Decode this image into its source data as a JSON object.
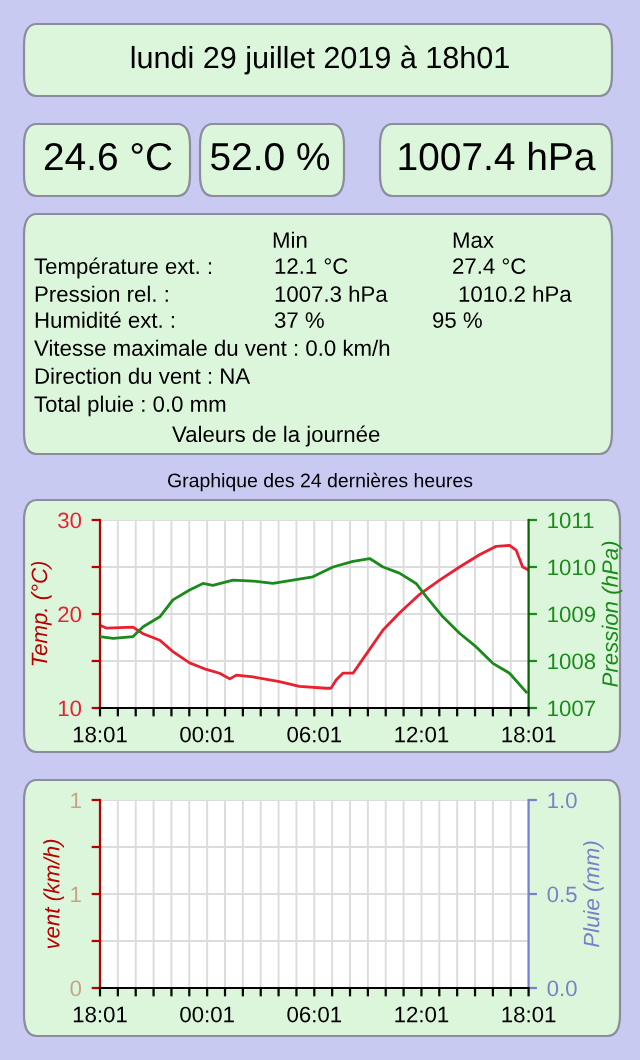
{
  "chart_data": [
    {
      "type": "other",
      "title": "lundi 29 juillet 2019 à 18h01",
      "annotations": [
        "24.6 °C",
        "52.0 %",
        "1007.4 hPa",
        "Min",
        "Max",
        "Température ext. :",
        "12.1 °C",
        "27.4 °C",
        "Pression rel. :",
        "1007.3 hPa",
        "1010.2 hPa",
        "Humidité ext. :",
        "37 %",
        "95 %",
        "Vitesse maximale du vent : 0.0 km/h",
        "Direction du vent : NA",
        "Total pluie : 0.0 mm",
        "Valeurs de la journée"
      ]
    },
    {
      "type": "line",
      "title": "Graphique des 24 dernières heures",
      "ylabel": "Temp. (°C)",
      "y2label": "Pression (hPa)",
      "grid": true,
      "xlim": [
        "2019-07-28T18:01",
        "2019-07-29T18:01"
      ],
      "xticks": [
        {
          "value": "2019-07-28T18:01",
          "label": "18:01"
        },
        {
          "value": "2019-07-28T19:01",
          "label": null
        },
        {
          "value": "2019-07-28T20:01",
          "label": null
        },
        {
          "value": "2019-07-28T21:01",
          "label": null
        },
        {
          "value": "2019-07-28T22:01",
          "label": null
        },
        {
          "value": "2019-07-28T23:01",
          "label": null
        },
        {
          "value": "2019-07-29T00:01",
          "label": "00:01"
        },
        {
          "value": "2019-07-29T01:01",
          "label": null
        },
        {
          "value": "2019-07-29T02:01",
          "label": null
        },
        {
          "value": "2019-07-29T03:01",
          "label": null
        },
        {
          "value": "2019-07-29T04:01",
          "label": null
        },
        {
          "value": "2019-07-29T05:01",
          "label": null
        },
        {
          "value": "2019-07-29T06:01",
          "label": "06:01"
        },
        {
          "value": "2019-07-29T07:01",
          "label": null
        },
        {
          "value": "2019-07-29T08:01",
          "label": null
        },
        {
          "value": "2019-07-29T09:01",
          "label": null
        },
        {
          "value": "2019-07-29T10:01",
          "label": null
        },
        {
          "value": "2019-07-29T11:01",
          "label": null
        },
        {
          "value": "2019-07-29T12:01",
          "label": "12:01"
        },
        {
          "value": "2019-07-29T13:01",
          "label": null
        },
        {
          "value": "2019-07-29T14:01",
          "label": null
        },
        {
          "value": "2019-07-29T15:01",
          "label": null
        },
        {
          "value": "2019-07-29T16:01",
          "label": null
        },
        {
          "value": "2019-07-29T17:01",
          "label": null
        },
        {
          "value": "2019-07-29T18:01",
          "label": "18:01"
        }
      ],
      "ylim": [
        10,
        30
      ],
      "yticks": [
        10,
        {
          "value": 15,
          "label": null
        },
        20,
        {
          "value": 25,
          "label": null
        },
        30
      ],
      "y2lim": [
        1007,
        1011
      ],
      "y2ticks": [
        1007,
        1008,
        1009,
        1010,
        1011
      ],
      "series": [
        {
          "color": "#e82030",
          "x": [
            "2019-07-28T18:01",
            "2019-07-28T18:22",
            "2019-07-28T19:52",
            "2019-07-28T20:26",
            "2019-07-28T21:22",
            "2019-07-28T22:06",
            "2019-07-28T23:02",
            "2019-07-28T23:58",
            "2019-07-29T00:43",
            "2019-07-29T01:17",
            "2019-07-29T01:39",
            "2019-07-29T02:35",
            "2019-07-29T04:04",
            "2019-07-29T05:11",
            "2019-07-29T06:41",
            "2019-07-29T06:57",
            "2019-07-29T07:15",
            "2019-07-29T07:37",
            "2019-07-29T08:11",
            "2019-07-29T08:44",
            "2019-07-29T09:52",
            "2019-07-29T10:47",
            "2019-07-29T11:55",
            "2019-07-29T13:02",
            "2019-07-29T14:09",
            "2019-07-29T15:16",
            "2019-07-29T16:12",
            "2019-07-29T16:57",
            "2019-07-29T17:19",
            "2019-07-29T17:41",
            "2019-07-29T18:00"
          ],
          "values": [
            18.8,
            18.5,
            18.6,
            17.9,
            17.2,
            16.0,
            14.8,
            14.1,
            13.7,
            13.1,
            13.5,
            13.3,
            12.8,
            12.3,
            12.1,
            12.1,
            13.0,
            13.7,
            13.7,
            15.2,
            18.3,
            20.1,
            22.1,
            23.6,
            25.0,
            26.3,
            27.2,
            27.3,
            26.8,
            25.0,
            24.7
          ]
        },
        {
          "color": "#1a8a1a",
          "axis": "y2",
          "x": [
            "2019-07-28T18:01",
            "2019-07-28T18:45",
            "2019-07-28T19:52",
            "2019-07-28T20:26",
            "2019-07-28T21:22",
            "2019-07-28T22:06",
            "2019-07-28T23:02",
            "2019-07-28T23:47",
            "2019-07-29T00:20",
            "2019-07-29T01:28",
            "2019-07-29T02:35",
            "2019-07-29T03:42",
            "2019-07-29T04:49",
            "2019-07-29T05:56",
            "2019-07-29T07:04",
            "2019-07-29T08:11",
            "2019-07-29T09:07",
            "2019-07-29T09:52",
            "2019-07-29T10:47",
            "2019-07-29T11:43",
            "2019-07-29T12:17",
            "2019-07-29T13:13",
            "2019-07-29T14:09",
            "2019-07-29T15:05",
            "2019-07-29T16:01",
            "2019-07-29T16:57",
            "2019-07-29T17:53"
          ],
          "values": [
            1008.52,
            1008.48,
            1008.52,
            1008.73,
            1008.94,
            1009.3,
            1009.51,
            1009.65,
            1009.61,
            1009.72,
            1009.7,
            1009.65,
            1009.72,
            1009.79,
            1010.0,
            1010.12,
            1010.18,
            1010.0,
            1009.87,
            1009.65,
            1009.37,
            1008.94,
            1008.59,
            1008.3,
            1007.95,
            1007.74,
            1007.34
          ]
        }
      ]
    },
    {
      "type": "line",
      "ylabel": "vent (km/h)",
      "y2label": "Pluie (mm)",
      "grid": true,
      "xlim": [
        "2019-07-28T18:01",
        "2019-07-29T18:01"
      ],
      "xticks": [
        {
          "value": "2019-07-28T18:01",
          "label": "18:01"
        },
        {
          "value": "2019-07-28T19:01",
          "label": null
        },
        {
          "value": "2019-07-28T20:01",
          "label": null
        },
        {
          "value": "2019-07-28T21:01",
          "label": null
        },
        {
          "value": "2019-07-28T22:01",
          "label": null
        },
        {
          "value": "2019-07-28T23:01",
          "label": null
        },
        {
          "value": "2019-07-29T00:01",
          "label": "00:01"
        },
        {
          "value": "2019-07-29T01:01",
          "label": null
        },
        {
          "value": "2019-07-29T02:01",
          "label": null
        },
        {
          "value": "2019-07-29T03:01",
          "label": null
        },
        {
          "value": "2019-07-29T04:01",
          "label": null
        },
        {
          "value": "2019-07-29T05:01",
          "label": null
        },
        {
          "value": "2019-07-29T06:01",
          "label": "06:01"
        },
        {
          "value": "2019-07-29T07:01",
          "label": null
        },
        {
          "value": "2019-07-29T08:01",
          "label": null
        },
        {
          "value": "2019-07-29T09:01",
          "label": null
        },
        {
          "value": "2019-07-29T10:01",
          "label": null
        },
        {
          "value": "2019-07-29T11:01",
          "label": null
        },
        {
          "value": "2019-07-29T12:01",
          "label": "12:01"
        },
        {
          "value": "2019-07-29T13:01",
          "label": null
        },
        {
          "value": "2019-07-29T14:01",
          "label": null
        },
        {
          "value": "2019-07-29T15:01",
          "label": null
        },
        {
          "value": "2019-07-29T16:01",
          "label": null
        },
        {
          "value": "2019-07-29T17:01",
          "label": null
        },
        {
          "value": "2019-07-29T18:01",
          "label": "18:01"
        }
      ],
      "ylim": [
        0,
        1
      ],
      "yticks": [
        0,
        {
          "value": 0.25,
          "label": null
        },
        {
          "value": 0.5,
          "label": "1"
        },
        {
          "value": 0.75,
          "label": null
        },
        {
          "value": 1,
          "label": "1"
        }
      ],
      "y2lim": [
        0,
        1
      ],
      "y2ticks": [
        {
          "value": 0,
          "label": "0.0"
        },
        {
          "value": 0.5,
          "label": "0.5"
        },
        {
          "value": 1,
          "label": "1.0"
        }
      ]
    }
  ]
}
